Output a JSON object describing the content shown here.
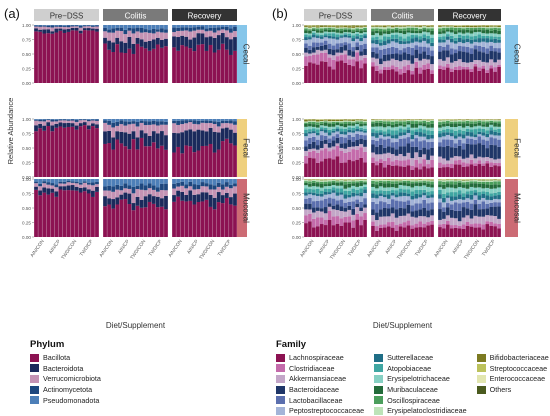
{
  "panel_labels": [
    "(a)",
    "(b)"
  ],
  "facet_cols": [
    "Pre−DSS",
    "Colitis",
    "Recovery"
  ],
  "facet_rows": [
    "Cecal",
    "Fecal",
    "Mucosal"
  ],
  "colors": {
    "col_pre": "#cfcfcf",
    "col_colitis": "#7a7a7a",
    "col_recovery": "#333333",
    "row_cecal": "#86c6ea",
    "row_fecal": "#efd07e",
    "row_mucosal": "#cc6b74",
    "panel_bg": "#ebebeb"
  },
  "axes": {
    "xlabel": "Diet/Supplement",
    "ylabel": "Relative Abundance",
    "ytick_labels": [
      "0.00",
      "0.25",
      "0.50",
      "0.75",
      "1.00"
    ],
    "xtick_labels": [
      "AIN/CON",
      "AIN/CP",
      "TWD/CON",
      "TWD/CP"
    ]
  },
  "legend_phylum": {
    "title": "Phylum",
    "items": [
      {
        "label": "Bacillota",
        "color": "#8c1252"
      },
      {
        "label": "Bacteroidota",
        "color": "#1b2a5c"
      },
      {
        "label": "Verrucomicrobiota",
        "color": "#c593b4"
      },
      {
        "label": "Actinomycetota",
        "color": "#1d477e"
      },
      {
        "label": "Pseudomonadota",
        "color": "#4d7fb8"
      }
    ]
  },
  "legend_family": {
    "title": "Family",
    "items": [
      {
        "label": "Lachnospiraceae",
        "color": "#8c1252"
      },
      {
        "label": "Clostridiaceae",
        "color": "#c46bab"
      },
      {
        "label": "Akkermansiaceae",
        "color": "#c3a6c8"
      },
      {
        "label": "Bacteroidaceae",
        "color": "#1f3668"
      },
      {
        "label": "Lactobacillaceae",
        "color": "#5b6fae"
      },
      {
        "label": "Peptostreptococcaceae",
        "color": "#a3b4d8"
      },
      {
        "label": "Sutterellaceae",
        "color": "#1f6e86"
      },
      {
        "label": "Atopobiaceae",
        "color": "#3fa6a2"
      },
      {
        "label": "Erysipelotrichaceae",
        "color": "#86d0c3"
      },
      {
        "label": "Muribaculaceae",
        "color": "#236b3a"
      },
      {
        "label": "Oscillospiraceae",
        "color": "#4b9e5c"
      },
      {
        "label": "Erysipelatoclostridiaceae",
        "color": "#bde3b8"
      },
      {
        "label": "Bifidobacteriaceae",
        "color": "#7c7a21"
      },
      {
        "label": "Streptococcaceae",
        "color": "#bcc25c"
      },
      {
        "label": "Enterococcaceae",
        "color": "#e2e6b0"
      },
      {
        "label": "Others",
        "color": "#4a5a1e"
      }
    ]
  },
  "chart_data": [
    {
      "type": "bar",
      "stacked": true,
      "panel": "(a)",
      "ylim": [
        0,
        1
      ],
      "note": "Approximate relative abundance per facet (each facet shows 4 diet groups with several replicate bars)",
      "facets": [
        {
          "row": "Cecal",
          "col": "Pre−DSS",
          "Bacillota": 0.88,
          "Bacteroidota": 0.05,
          "Verrucomicrobiota": 0.04,
          "Actinomycetota": 0.02,
          "Pseudomonadota": 0.01
        },
        {
          "row": "Cecal",
          "col": "Colitis",
          "Bacillota": 0.62,
          "Bacteroidota": 0.14,
          "Verrucomicrobiota": 0.12,
          "Actinomycetota": 0.06,
          "Pseudomonadota": 0.06
        },
        {
          "row": "Cecal",
          "col": "Recovery",
          "Bacillota": 0.6,
          "Bacteroidota": 0.2,
          "Verrucomicrobiota": 0.1,
          "Actinomycetota": 0.06,
          "Pseudomonadota": 0.04
        },
        {
          "row": "Fecal",
          "col": "Pre−DSS",
          "Bacillota": 0.85,
          "Bacteroidota": 0.07,
          "Verrucomicrobiota": 0.05,
          "Actinomycetota": 0.02,
          "Pseudomonadota": 0.01
        },
        {
          "row": "Fecal",
          "col": "Colitis",
          "Bacillota": 0.55,
          "Bacteroidota": 0.2,
          "Verrucomicrobiota": 0.15,
          "Actinomycetota": 0.06,
          "Pseudomonadota": 0.04
        },
        {
          "row": "Fecal",
          "col": "Recovery",
          "Bacillota": 0.5,
          "Bacteroidota": 0.3,
          "Verrucomicrobiota": 0.12,
          "Actinomycetota": 0.05,
          "Pseudomonadota": 0.03
        },
        {
          "row": "Mucosal",
          "col": "Pre−DSS",
          "Bacillota": 0.78,
          "Bacteroidota": 0.08,
          "Verrucomicrobiota": 0.06,
          "Actinomycetota": 0.03,
          "Pseudomonadota": 0.05
        },
        {
          "row": "Mucosal",
          "col": "Colitis",
          "Bacillota": 0.55,
          "Bacteroidota": 0.15,
          "Verrucomicrobiota": 0.12,
          "Actinomycetota": 0.08,
          "Pseudomonadota": 0.1
        },
        {
          "row": "Mucosal",
          "col": "Recovery",
          "Bacillota": 0.6,
          "Bacteroidota": 0.15,
          "Verrucomicrobiota": 0.1,
          "Actinomycetota": 0.07,
          "Pseudomonadota": 0.08
        }
      ]
    },
    {
      "type": "bar",
      "stacked": true,
      "panel": "(b)",
      "ylim": [
        0,
        1
      ],
      "note": "Approximate family-level relative abundance per facet",
      "facets": [
        {
          "row": "Cecal",
          "col": "Pre−DSS",
          "Lachnospiraceae": 0.32,
          "Clostridiaceae": 0.14,
          "Akkermansiaceae": 0.06,
          "Bacteroidaceae": 0.08,
          "Lactobacillaceae": 0.08,
          "Peptostreptococcaceae": 0.08,
          "Sutterellaceae": 0.04,
          "Atopobiaceae": 0.04,
          "Erysipelotrichaceae": 0.03,
          "Muribaculaceae": 0.04,
          "Oscillospiraceae": 0.03,
          "Erysipelatoclostridiaceae": 0.02,
          "Bifidobacteriaceae": 0.02,
          "Streptococcaceae": 0.01,
          "Enterococcaceae": 0.005,
          "Others": 0.005
        },
        {
          "row": "Cecal",
          "col": "Colitis",
          "Lachnospiraceae": 0.2,
          "Clostridiaceae": 0.08,
          "Akkermansiaceae": 0.1,
          "Bacteroidaceae": 0.12,
          "Lactobacillaceae": 0.1,
          "Peptostreptococcaceae": 0.08,
          "Sutterellaceae": 0.06,
          "Atopobiaceae": 0.06,
          "Erysipelotrichaceae": 0.05,
          "Muribaculaceae": 0.05,
          "Oscillospiraceae": 0.04,
          "Erysipelatoclostridiaceae": 0.03,
          "Bifidobacteriaceae": 0.02,
          "Streptococcaceae": 0.005,
          "Enterococcaceae": 0.005,
          "Others": 0.0
        },
        {
          "row": "Cecal",
          "col": "Recovery",
          "Lachnospiraceae": 0.22,
          "Clostridiaceae": 0.06,
          "Akkermansiaceae": 0.1,
          "Bacteroidaceae": 0.16,
          "Lactobacillaceae": 0.08,
          "Peptostreptococcaceae": 0.08,
          "Sutterellaceae": 0.06,
          "Atopobiaceae": 0.05,
          "Erysipelotrichaceae": 0.05,
          "Muribaculaceae": 0.05,
          "Oscillospiraceae": 0.04,
          "Erysipelatoclostridiaceae": 0.02,
          "Bifidobacteriaceae": 0.02,
          "Streptococcaceae": 0.005,
          "Enterococcaceae": 0.005,
          "Others": 0.0
        },
        {
          "row": "Fecal",
          "col": "Pre−DSS",
          "Lachnospiraceae": 0.28,
          "Clostridiaceae": 0.16,
          "Akkermansiaceae": 0.06,
          "Bacteroidaceae": 0.1,
          "Lactobacillaceae": 0.1,
          "Peptostreptococcaceae": 0.06,
          "Sutterellaceae": 0.04,
          "Atopobiaceae": 0.04,
          "Erysipelotrichaceae": 0.04,
          "Muribaculaceae": 0.04,
          "Oscillospiraceae": 0.03,
          "Erysipelatoclostridiaceae": 0.02,
          "Bifidobacteriaceae": 0.02,
          "Streptococcaceae": 0.005,
          "Enterococcaceae": 0.005,
          "Others": 0.0
        },
        {
          "row": "Fecal",
          "col": "Colitis",
          "Lachnospiraceae": 0.18,
          "Clostridiaceae": 0.1,
          "Akkermansiaceae": 0.1,
          "Bacteroidaceae": 0.14,
          "Lactobacillaceae": 0.12,
          "Peptostreptococcaceae": 0.06,
          "Sutterellaceae": 0.06,
          "Atopobiaceae": 0.06,
          "Erysipelotrichaceae": 0.05,
          "Muribaculaceae": 0.05,
          "Oscillospiraceae": 0.04,
          "Erysipelatoclostridiaceae": 0.02,
          "Bifidobacteriaceae": 0.01,
          "Streptococcaceae": 0.005,
          "Enterococcaceae": 0.005,
          "Others": 0.0
        },
        {
          "row": "Fecal",
          "col": "Recovery",
          "Lachnospiraceae": 0.2,
          "Clostridiaceae": 0.06,
          "Akkermansiaceae": 0.08,
          "Bacteroidaceae": 0.2,
          "Lactobacillaceae": 0.1,
          "Peptostreptococcaceae": 0.06,
          "Sutterellaceae": 0.06,
          "Atopobiaceae": 0.06,
          "Erysipelotrichaceae": 0.05,
          "Muribaculaceae": 0.05,
          "Oscillospiraceae": 0.04,
          "Erysipelatoclostridiaceae": 0.02,
          "Bifidobacteriaceae": 0.01,
          "Streptococcaceae": 0.005,
          "Enterococcaceae": 0.005,
          "Others": 0.0
        },
        {
          "row": "Mucosal",
          "col": "Pre−DSS",
          "Lachnospiraceae": 0.24,
          "Clostridiaceae": 0.12,
          "Akkermansiaceae": 0.1,
          "Bacteroidaceae": 0.08,
          "Lactobacillaceae": 0.1,
          "Peptostreptococcaceae": 0.08,
          "Sutterellaceae": 0.05,
          "Atopobiaceae": 0.06,
          "Erysipelotrichaceae": 0.05,
          "Muribaculaceae": 0.05,
          "Oscillospiraceae": 0.03,
          "Erysipelatoclostridiaceae": 0.02,
          "Bifidobacteriaceae": 0.01,
          "Streptococcaceae": 0.005,
          "Enterococcaceae": 0.005,
          "Others": 0.0
        },
        {
          "row": "Mucosal",
          "col": "Colitis",
          "Lachnospiraceae": 0.16,
          "Clostridiaceae": 0.08,
          "Akkermansiaceae": 0.12,
          "Bacteroidaceae": 0.12,
          "Lactobacillaceae": 0.12,
          "Peptostreptococcaceae": 0.08,
          "Sutterellaceae": 0.06,
          "Atopobiaceae": 0.06,
          "Erysipelotrichaceae": 0.06,
          "Muribaculaceae": 0.06,
          "Oscillospiraceae": 0.04,
          "Erysipelatoclostridiaceae": 0.02,
          "Bifidobacteriaceae": 0.01,
          "Streptococcaceae": 0.005,
          "Enterococcaceae": 0.005,
          "Others": 0.0
        },
        {
          "row": "Mucosal",
          "col": "Recovery",
          "Lachnospiraceae": 0.18,
          "Clostridiaceae": 0.06,
          "Akkermansiaceae": 0.1,
          "Bacteroidaceae": 0.16,
          "Lactobacillaceae": 0.1,
          "Peptostreptococcaceae": 0.06,
          "Sutterellaceae": 0.06,
          "Atopobiaceae": 0.06,
          "Erysipelotrichaceae": 0.06,
          "Muribaculaceae": 0.06,
          "Oscillospiraceae": 0.04,
          "Erysipelatoclostridiaceae": 0.02,
          "Bifidobacteriaceae": 0.01,
          "Streptococcaceae": 0.005,
          "Enterococcaceae": 0.005,
          "Others": 0.0
        }
      ]
    }
  ]
}
